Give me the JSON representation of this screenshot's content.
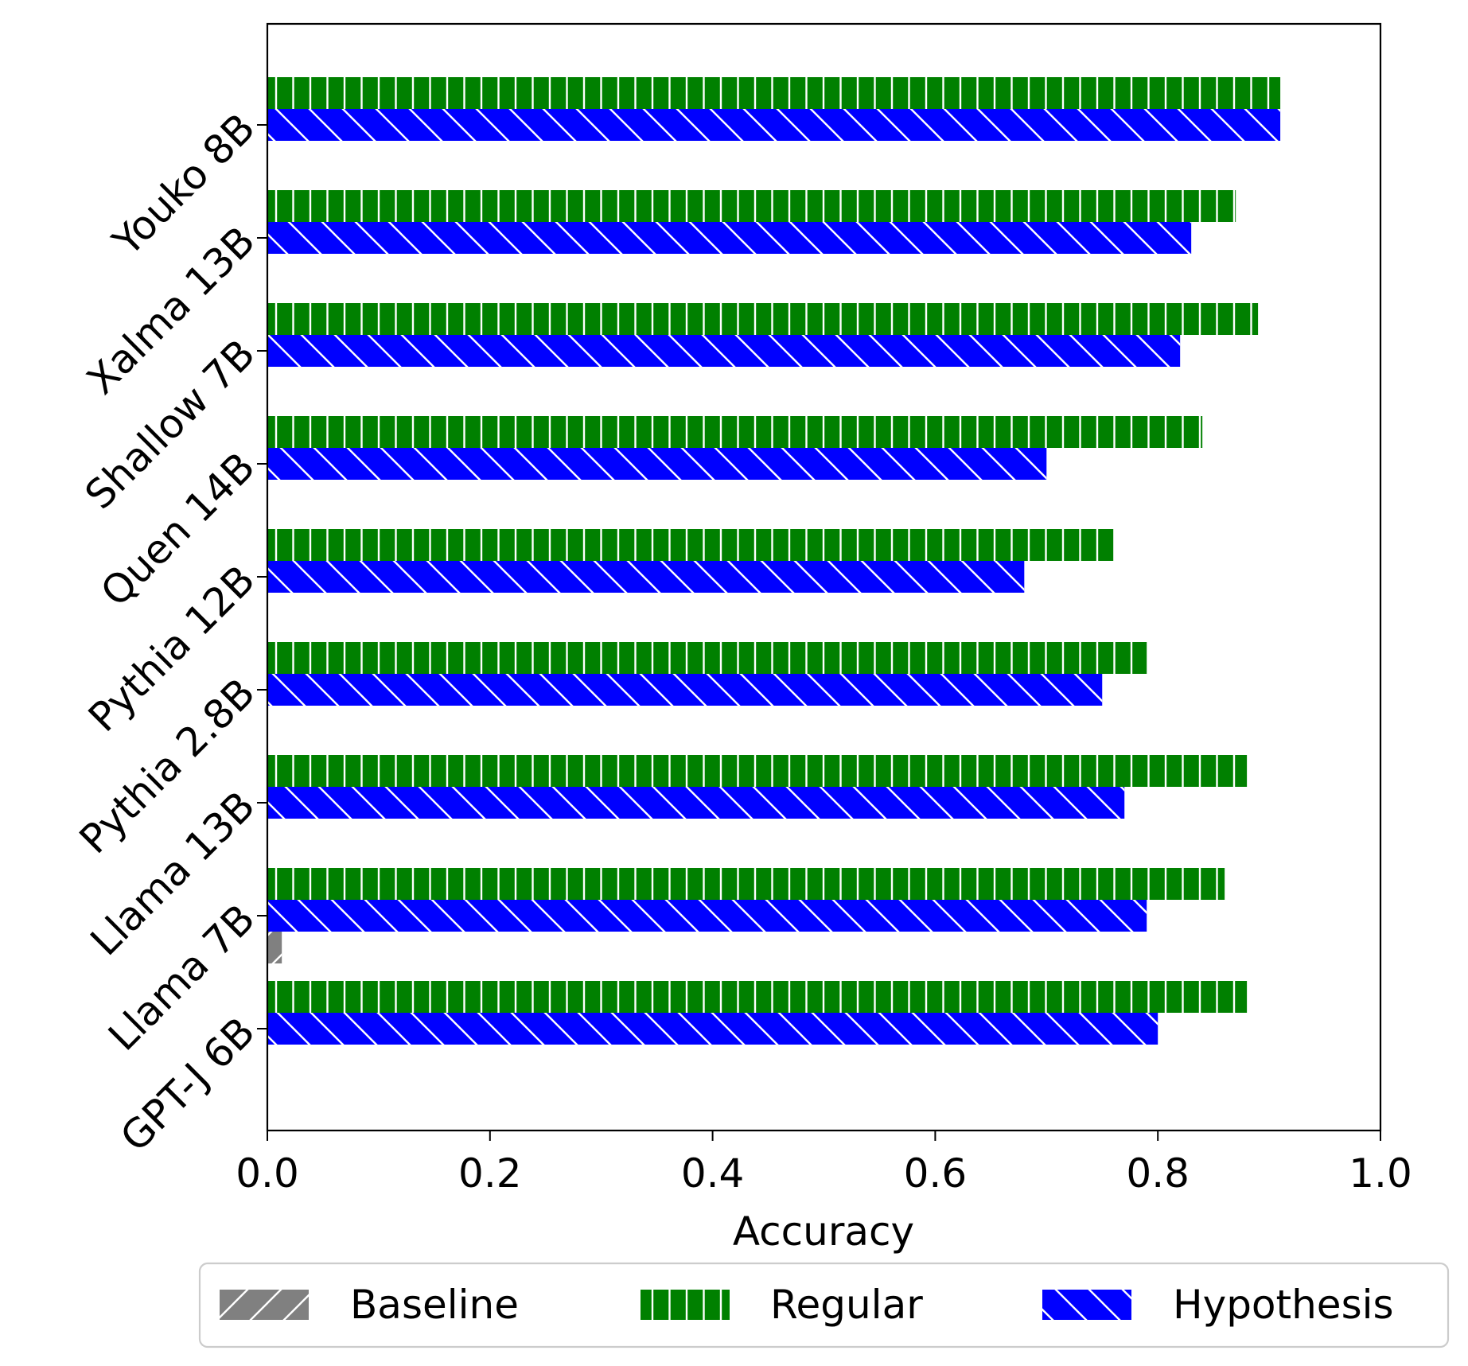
{
  "chart_data": {
    "type": "bar",
    "orientation": "horizontal",
    "title": "",
    "xlabel": "Accuracy",
    "ylabel": "",
    "xlim": [
      0,
      1
    ],
    "xticks": [
      "0.0",
      "0.2",
      "0.4",
      "0.6",
      "0.8",
      "1.0"
    ],
    "categories": [
      "Youko 8B",
      "Xalma 13B",
      "Shallow 7B",
      "Quen 14B",
      "Pythia 12B",
      "Pythia 2.8B",
      "Llama 13B",
      "Llama 7B",
      "GPT-J 6B"
    ],
    "series": [
      {
        "name": "Baseline",
        "color": "#808080",
        "hatch": "diagonal-forward",
        "values": [
          0,
          0,
          0,
          0,
          0,
          0,
          0,
          0.013,
          0
        ]
      },
      {
        "name": "Regular",
        "color": "#008000",
        "hatch": "vertical",
        "values": [
          0.91,
          0.87,
          0.89,
          0.84,
          0.76,
          0.79,
          0.88,
          0.86,
          0.88
        ]
      },
      {
        "name": "Hypothesis",
        "color": "#0000ff",
        "hatch": "diagonal-backward",
        "values": [
          0.91,
          0.83,
          0.82,
          0.7,
          0.68,
          0.75,
          0.77,
          0.79,
          0.8
        ]
      }
    ],
    "grid": false,
    "legend": {
      "position": "bottom",
      "columns": 3
    }
  }
}
